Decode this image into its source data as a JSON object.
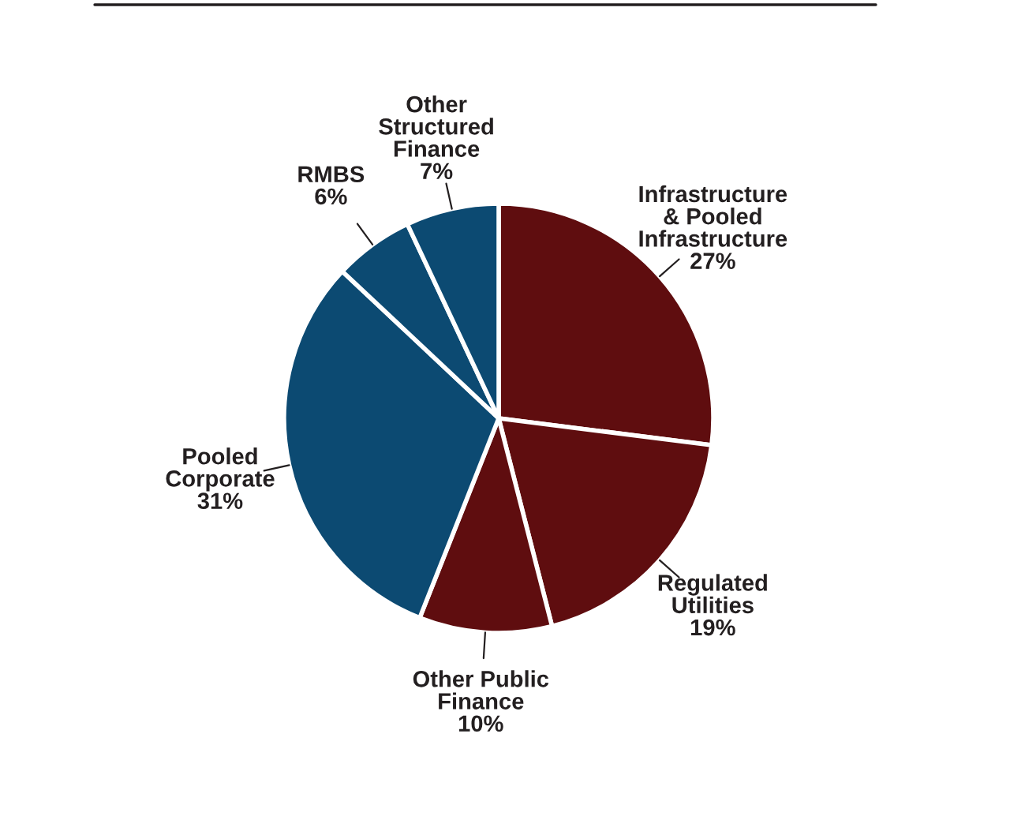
{
  "chart_data": {
    "type": "pie",
    "categories": [
      "Infrastructure\n& Pooled\nInfrastructure",
      "Regulated\nUtilities",
      "Other Public\nFinance",
      "Pooled\nCorporate",
      "RMBS",
      "Other\nStructured\nFinance"
    ],
    "values": [
      27,
      19,
      10,
      31,
      6,
      7
    ],
    "colors": [
      "#5f0d0f",
      "#5f0d0f",
      "#5f0d0f",
      "#0c4a72",
      "#0c4a72",
      "#0c4a72"
    ],
    "value_labels": [
      "27%",
      "19%",
      "10%",
      "31%",
      "6%",
      "7%"
    ]
  }
}
